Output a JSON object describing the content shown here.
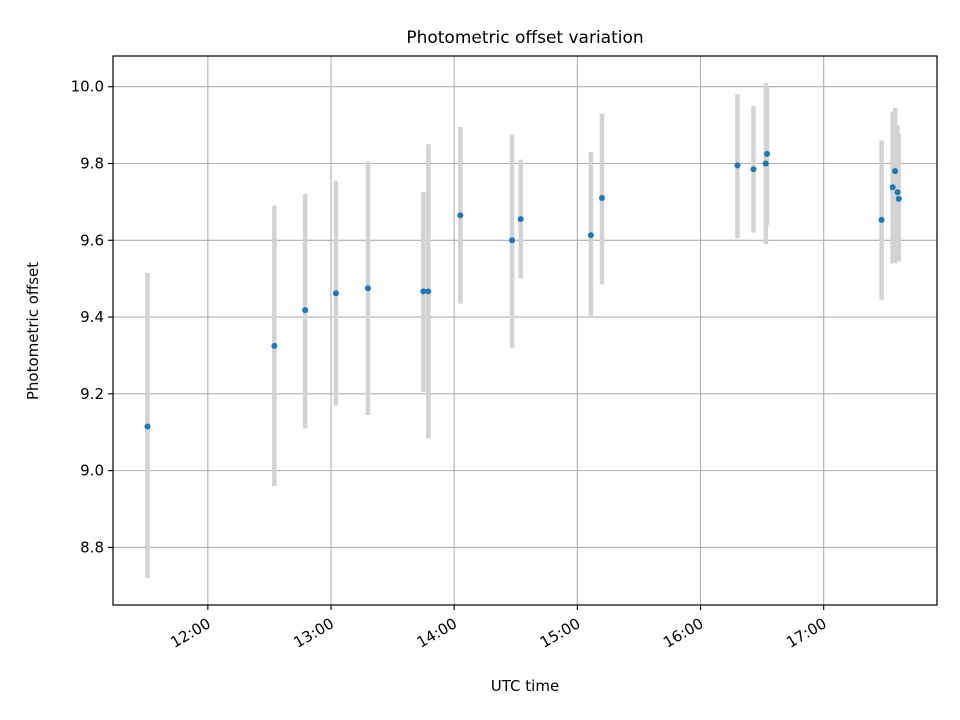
{
  "chart_data": {
    "type": "scatter",
    "title": "Photometric offset variation",
    "xlabel": "UTC time",
    "ylabel": "Photometric offset",
    "x_unit": "time of day (hours, UTC)",
    "xlim": [
      11.23,
      17.92
    ],
    "ylim": [
      8.65,
      10.08
    ],
    "x_ticks": [
      12,
      13,
      14,
      15,
      16,
      17
    ],
    "x_tick_labels": [
      "12:00",
      "13:00",
      "14:00",
      "15:00",
      "16:00",
      "17:00"
    ],
    "y_ticks": [
      8.8,
      9.0,
      9.2,
      9.4,
      9.6,
      9.8,
      10.0
    ],
    "y_tick_labels": [
      "8.8",
      "9.0",
      "9.2",
      "9.4",
      "9.6",
      "9.8",
      "10.0"
    ],
    "grid": true,
    "marker_color": "#1f77b4",
    "errorbar_color": "#d3d3d3",
    "points": [
      {
        "x": 11.51,
        "y": 9.115,
        "err_low": 8.72,
        "err_high": 9.515
      },
      {
        "x": 12.54,
        "y": 9.325,
        "err_low": 8.96,
        "err_high": 9.69
      },
      {
        "x": 12.79,
        "y": 9.418,
        "err_low": 9.11,
        "err_high": 9.72
      },
      {
        "x": 13.04,
        "y": 9.462,
        "err_low": 9.17,
        "err_high": 9.755
      },
      {
        "x": 13.3,
        "y": 9.475,
        "err_low": 9.145,
        "err_high": 9.805
      },
      {
        "x": 13.75,
        "y": 9.467,
        "err_low": 9.205,
        "err_high": 9.725
      },
      {
        "x": 13.79,
        "y": 9.467,
        "err_low": 9.085,
        "err_high": 9.85
      },
      {
        "x": 14.05,
        "y": 9.665,
        "err_low": 9.435,
        "err_high": 9.895
      },
      {
        "x": 14.47,
        "y": 9.6,
        "err_low": 9.32,
        "err_high": 9.875
      },
      {
        "x": 14.54,
        "y": 9.655,
        "err_low": 9.5,
        "err_high": 9.81
      },
      {
        "x": 15.11,
        "y": 9.613,
        "err_low": 9.4,
        "err_high": 9.83
      },
      {
        "x": 15.2,
        "y": 9.71,
        "err_low": 9.485,
        "err_high": 9.93
      },
      {
        "x": 16.3,
        "y": 9.795,
        "err_low": 9.605,
        "err_high": 9.98
      },
      {
        "x": 16.43,
        "y": 9.785,
        "err_low": 9.62,
        "err_high": 9.95
      },
      {
        "x": 16.53,
        "y": 9.8,
        "err_low": 9.59,
        "err_high": 10.01
      },
      {
        "x": 16.54,
        "y": 9.825,
        "err_low": 9.64,
        "err_high": 10.0
      },
      {
        "x": 17.47,
        "y": 9.653,
        "err_low": 9.445,
        "err_high": 9.86
      },
      {
        "x": 17.56,
        "y": 9.738,
        "err_low": 9.54,
        "err_high": 9.935
      },
      {
        "x": 17.58,
        "y": 9.78,
        "err_low": 9.54,
        "err_high": 9.945
      },
      {
        "x": 17.6,
        "y": 9.725,
        "err_low": 9.545,
        "err_high": 9.9
      },
      {
        "x": 17.61,
        "y": 9.708,
        "err_low": 9.545,
        "err_high": 9.875
      }
    ]
  }
}
